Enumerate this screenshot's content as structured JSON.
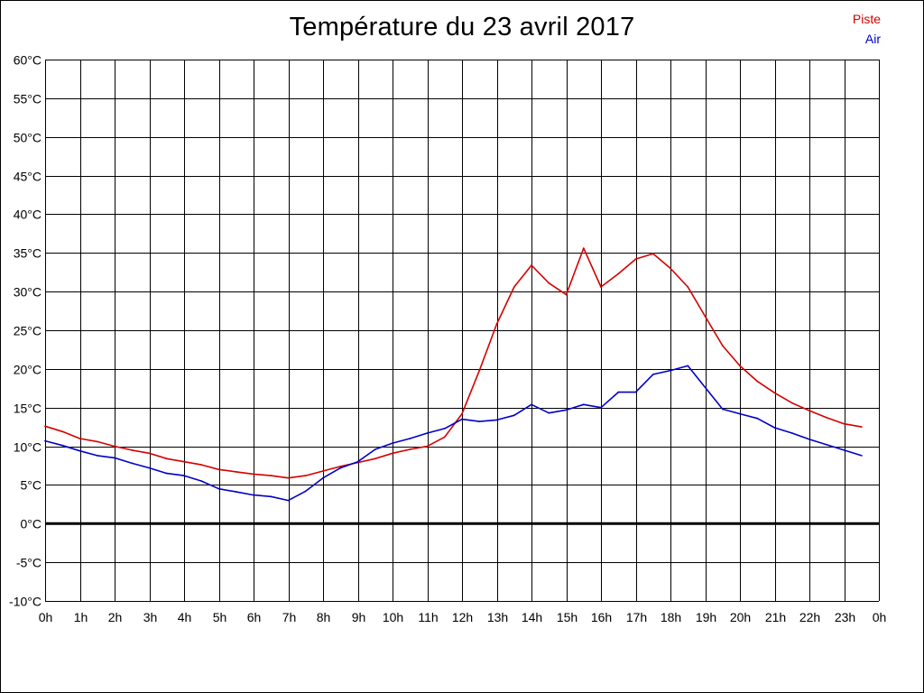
{
  "chart_data": {
    "type": "line",
    "title": "Température du 23 avril 2017",
    "xlabel": "",
    "ylabel": "",
    "x_tick_labels": [
      "0h",
      "1h",
      "2h",
      "3h",
      "4h",
      "5h",
      "6h",
      "7h",
      "8h",
      "9h",
      "10h",
      "11h",
      "12h",
      "13h",
      "14h",
      "15h",
      "16h",
      "17h",
      "18h",
      "19h",
      "20h",
      "21h",
      "22h",
      "23h",
      "0h"
    ],
    "y_tick_labels": [
      "60°C",
      "55°C",
      "50°C",
      "45°C",
      "40°C",
      "35°C",
      "30°C",
      "25°C",
      "20°C",
      "15°C",
      "10°C",
      "5°C",
      "0°C",
      "-5°C",
      "-10°C"
    ],
    "y_ticks": [
      60,
      55,
      50,
      45,
      40,
      35,
      30,
      25,
      20,
      15,
      10,
      5,
      0,
      -5,
      -10
    ],
    "ylim": [
      -10,
      60
    ],
    "xlim": [
      0,
      24
    ],
    "grid": true,
    "legend_position": "top-right",
    "zero_line": true,
    "series": [
      {
        "name": "Piste",
        "color": "#d40000",
        "x": [
          0,
          0.5,
          1,
          1.5,
          2,
          2.5,
          3,
          3.5,
          4,
          4.5,
          5,
          5.5,
          6,
          6.5,
          7,
          7.5,
          8,
          8.5,
          9,
          9.5,
          10,
          10.5,
          11,
          11.5,
          12,
          12.5,
          13,
          13.5,
          14,
          14.5,
          15,
          15.5,
          16,
          16.5,
          17,
          17.5,
          18,
          18.5,
          19,
          19.5,
          20,
          20.5,
          21,
          21.5,
          22,
          22.5,
          23,
          23.5
        ],
        "values": [
          12.6,
          11.9,
          11.0,
          10.6,
          10.0,
          9.5,
          9.1,
          8.4,
          8.0,
          7.6,
          7.0,
          6.7,
          6.4,
          6.2,
          5.9,
          6.2,
          6.8,
          7.4,
          7.9,
          8.4,
          9.1,
          9.6,
          10.0,
          11.2,
          14.2,
          19.8,
          25.8,
          30.6,
          33.4,
          31.1,
          29.6,
          35.6,
          30.6,
          32.3,
          34.2,
          34.9,
          33.0,
          30.6,
          26.8,
          23.0,
          20.4,
          18.4,
          16.9,
          15.6,
          14.6,
          13.7,
          12.9,
          12.5
        ]
      },
      {
        "name": "Air",
        "color": "#0000c8",
        "x": [
          0,
          0.5,
          1,
          1.5,
          2,
          2.5,
          3,
          3.5,
          4,
          4.5,
          5,
          5.5,
          6,
          6.5,
          7,
          7.5,
          8,
          8.5,
          9,
          9.5,
          10,
          10.5,
          11,
          11.5,
          12,
          12.5,
          13,
          13.5,
          14,
          14.5,
          15,
          15.5,
          16,
          16.5,
          17,
          17.5,
          18,
          18.5,
          19,
          19.5,
          20,
          20.5,
          21,
          21.5,
          22,
          22.5,
          23,
          23.5
        ],
        "values": [
          10.7,
          10.1,
          9.4,
          8.8,
          8.5,
          7.8,
          7.2,
          6.5,
          6.2,
          5.5,
          4.5,
          4.1,
          3.7,
          3.5,
          3.0,
          4.2,
          5.9,
          7.2,
          8.0,
          9.6,
          10.4,
          11.0,
          11.7,
          12.3,
          13.5,
          13.2,
          13.4,
          14.0,
          15.4,
          14.3,
          14.7,
          15.4,
          15.0,
          17.0,
          17.0,
          19.3,
          19.8,
          20.4,
          17.6,
          14.8,
          14.2,
          13.6,
          12.4,
          11.7,
          10.9,
          10.2,
          9.5,
          8.8
        ]
      }
    ]
  }
}
